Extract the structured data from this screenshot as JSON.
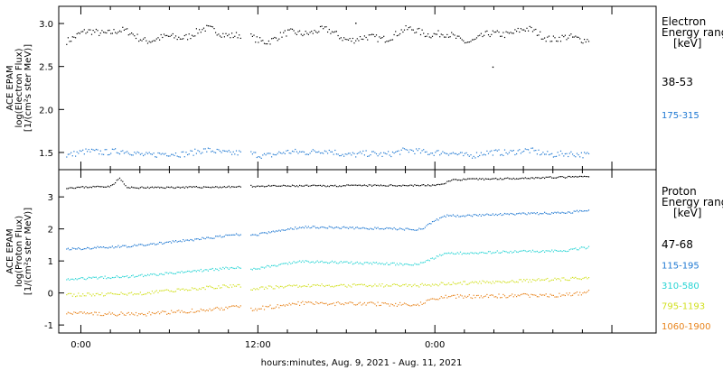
{
  "chart_data": [
    {
      "type": "scatter",
      "panel": "electron",
      "ylabel_lines": [
        "ACE EPAM",
        "log(Electron Flux)",
        "[1/(cm²s ster MeV)]"
      ],
      "legend_title_lines": [
        "Electron",
        "Energy ranges",
        "[keV]"
      ],
      "yticks": [
        "1.5",
        "2.0",
        "2.5",
        "3.0"
      ],
      "ylim": [
        1.3,
        3.2
      ],
      "xlim": [
        -1.5,
        39
      ],
      "gap": [
        10.8,
        11.4
      ],
      "data_end": 34.5,
      "series": [
        {
          "name": "38-53",
          "color": "#000000",
          "base": 2.87,
          "amp": 0.05,
          "noise": 0.04,
          "outliers": [
            [
              18.6,
              3.01
            ],
            [
              27.9,
              2.5
            ]
          ]
        },
        {
          "name": "175-315",
          "color": "#1e78d2",
          "base": 1.5,
          "amp": 0.02,
          "noise": 0.035,
          "outliers": []
        }
      ]
    },
    {
      "type": "scatter",
      "panel": "proton",
      "ylabel_lines": [
        "ACE EPAM",
        "log(Proton Flux)",
        "[1/(cm²s ster MeV)]"
      ],
      "legend_title_lines": [
        "Proton",
        "Energy ranges",
        "[keV]"
      ],
      "yticks": [
        "-1",
        "0",
        "1",
        "2",
        "3"
      ],
      "ylim": [
        -1.25,
        3.85
      ],
      "xlim": [
        -1.5,
        39
      ],
      "gap": [
        10.8,
        11.4
      ],
      "data_end": 34.5,
      "series": [
        {
          "name": "47-68",
          "color": "#000000",
          "noise": 0.025,
          "trend": [
            [
              -1,
              3.3
            ],
            [
              2.0,
              3.35
            ],
            [
              2.6,
              3.6
            ],
            [
              3.1,
              3.3
            ],
            [
              10.8,
              3.33
            ],
            [
              11.4,
              3.35
            ],
            [
              24.2,
              3.38
            ],
            [
              25.2,
              3.55
            ],
            [
              34.5,
              3.65
            ]
          ]
        },
        {
          "name": "115-195",
          "color": "#1e78d2",
          "noise": 0.035,
          "trend": [
            [
              -1,
              1.38
            ],
            [
              4,
              1.5
            ],
            [
              9,
              1.75
            ],
            [
              10.8,
              1.85
            ],
            [
              11.4,
              1.8
            ],
            [
              15,
              2.08
            ],
            [
              22.8,
              2.0
            ],
            [
              23.2,
              2.05
            ],
            [
              24.6,
              2.42
            ],
            [
              33,
              2.52
            ],
            [
              34.5,
              2.62
            ]
          ]
        },
        {
          "name": "310-580",
          "color": "#27d4d4",
          "noise": 0.04,
          "trend": [
            [
              -1,
              0.45
            ],
            [
              4,
              0.55
            ],
            [
              9,
              0.75
            ],
            [
              10.8,
              0.82
            ],
            [
              11.4,
              0.75
            ],
            [
              15,
              1.0
            ],
            [
              22.8,
              0.9
            ],
            [
              24.6,
              1.25
            ],
            [
              33,
              1.35
            ],
            [
              34.5,
              1.45
            ]
          ]
        },
        {
          "name": "795-1193",
          "color": "#d2e020",
          "noise": 0.05,
          "trend": [
            [
              -1,
              -0.05
            ],
            [
              4,
              0.0
            ],
            [
              9,
              0.2
            ],
            [
              10.8,
              0.25
            ],
            [
              11.4,
              0.15
            ],
            [
              15,
              0.25
            ],
            [
              22.8,
              0.25
            ],
            [
              24.6,
              0.3
            ],
            [
              33,
              0.45
            ],
            [
              34.5,
              0.5
            ]
          ]
        },
        {
          "name": "1060-1900",
          "color": "#e8841c",
          "noise": 0.06,
          "trend": [
            [
              -1,
              -0.62
            ],
            [
              4,
              -0.65
            ],
            [
              9,
              -0.5
            ],
            [
              10.8,
              -0.4
            ],
            [
              11.4,
              -0.5
            ],
            [
              15,
              -0.3
            ],
            [
              22.8,
              -0.35
            ],
            [
              24.6,
              -0.1
            ],
            [
              33,
              -0.05
            ],
            [
              34.5,
              0.05
            ]
          ]
        }
      ]
    }
  ],
  "xaxis": {
    "ticks": [
      {
        "hour": 0,
        "label": "0:00"
      },
      {
        "hour": 12,
        "label": "12:00"
      },
      {
        "hour": 24,
        "label": "0:00"
      }
    ],
    "minor_step": 2,
    "label": "hours:minutes, Aug.  9, 2021 - Aug. 11, 2021"
  }
}
